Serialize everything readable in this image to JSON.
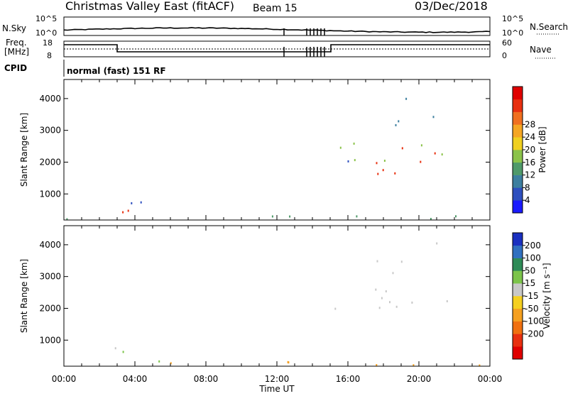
{
  "header": {
    "title": "Christmas Valley East (fitACF)",
    "beam": "Beam 15",
    "date": "03/Dec/2018"
  },
  "panels": {
    "nsky": {
      "left_label": "N.Sky",
      "right_label": "N.Search",
      "left_ticks": [
        "10^5",
        "10^0"
      ],
      "right_ticks": [
        "10^5",
        "10^0"
      ]
    },
    "freq": {
      "left_label_1": "Freq.",
      "left_label_2": "[MHz]",
      "right_label": "Nave",
      "left_ticks": [
        "18",
        "8"
      ],
      "right_ticks": [
        "60",
        "0"
      ]
    },
    "cpid": {
      "label": "CPID",
      "text": "normal (fast) 151 RF"
    }
  },
  "chart_data": [
    {
      "type": "heatmap",
      "name": "power",
      "ylabel": "Slant Range [km]",
      "xlabel": "Time UT",
      "xlim_hours": [
        0,
        24
      ],
      "ylim": [
        180,
        4600
      ],
      "yticks": [
        1000,
        2000,
        3000,
        4000
      ],
      "xticks": [
        "00:00",
        "04:00",
        "08:00",
        "12:00",
        "16:00",
        "20:00",
        "00:00"
      ],
      "colorbar": {
        "label": "Power [dB]",
        "ticks": [
          "4",
          "8",
          "12",
          "16",
          "20",
          "24",
          "28"
        ],
        "colors": [
          "#1a1aff",
          "#2e4fbf",
          "#3d7f9f",
          "#4f9a6a",
          "#8bc34a",
          "#f0d020",
          "#f5a623",
          "#f07020",
          "#e83010",
          "#e00000"
        ]
      },
      "regions": [
        {
          "t0": 0.0,
          "t1": 24.0,
          "r0": 180,
          "r1": 400,
          "color": "#4f9a6a"
        },
        {
          "t0": 2.8,
          "t1": 6.5,
          "r0": 200,
          "r1": 650,
          "color": "#e83010"
        },
        {
          "t0": 2.8,
          "t1": 5.0,
          "r0": 500,
          "r1": 1250,
          "color": "#2e4fbf"
        },
        {
          "t0": 15.5,
          "t1": 22.0,
          "r0": 1550,
          "r1": 2500,
          "color": "#e83010"
        },
        {
          "t0": 15.5,
          "t1": 22.0,
          "r0": 2000,
          "r1": 2800,
          "color": "#8bc34a"
        },
        {
          "t0": 17.5,
          "t1": 21.2,
          "r0": 3100,
          "r1": 4100,
          "color": "#3d7f9f"
        },
        {
          "t0": 14.8,
          "t1": 16.0,
          "r0": 1900,
          "r1": 2600,
          "color": "#2e4fbf"
        }
      ]
    },
    {
      "type": "heatmap",
      "name": "velocity",
      "ylabel": "Slant Range [km]",
      "xlabel": "Time UT",
      "xlim_hours": [
        0,
        24
      ],
      "ylim": [
        180,
        4600
      ],
      "yticks": [
        1000,
        2000,
        3000,
        4000
      ],
      "xticks": [
        "00:00",
        "04:00",
        "08:00",
        "12:00",
        "16:00",
        "20:00",
        "00:00"
      ],
      "colorbar": {
        "label": "Velocity [m s⁻¹]",
        "ticks": [
          "200",
          "100",
          "50",
          "15",
          "-15",
          "-50",
          "-100",
          "-200"
        ],
        "colors": [
          "#1a30c0",
          "#3070c0",
          "#2e8b57",
          "#7cc44a",
          "#c8c8c8",
          "#f5d020",
          "#f5a020",
          "#f07010",
          "#e83010",
          "#e00000"
        ]
      },
      "regions": [
        {
          "t0": 0.0,
          "t1": 24.0,
          "r0": 180,
          "r1": 400,
          "color": "#f5a020"
        },
        {
          "t0": 2.8,
          "t1": 6.5,
          "r0": 200,
          "r1": 800,
          "color": "#7cc44a"
        },
        {
          "t0": 2.8,
          "t1": 5.0,
          "r0": 700,
          "r1": 1300,
          "color": "#c8c8c8"
        },
        {
          "t0": 15.5,
          "t1": 22.0,
          "r0": 1550,
          "r1": 2700,
          "color": "#c8c8c8"
        },
        {
          "t0": 17.5,
          "t1": 21.2,
          "r0": 3100,
          "r1": 4100,
          "color": "#c8c8c8"
        },
        {
          "t0": 14.8,
          "t1": 16.0,
          "r0": 1900,
          "r1": 2600,
          "color": "#c8c8c8"
        }
      ]
    }
  ]
}
